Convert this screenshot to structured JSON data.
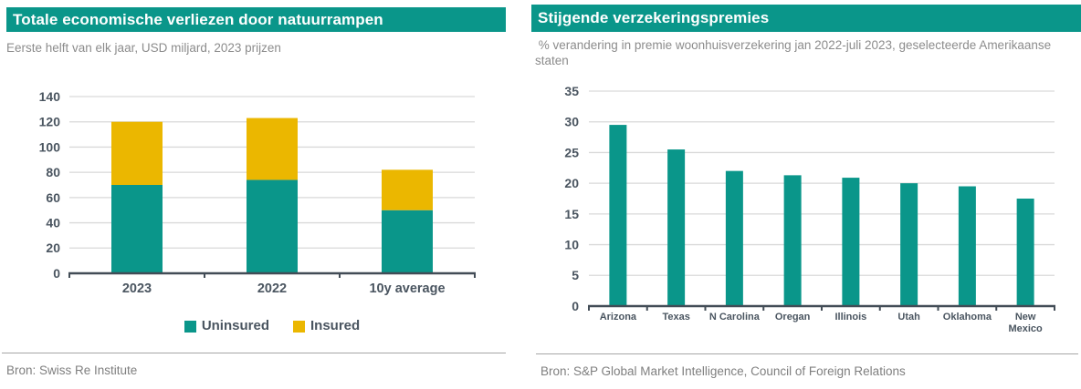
{
  "colors": {
    "teal": "#0A968A",
    "yellow": "#EBB700",
    "axis_text": "#4A5560",
    "axis_line": "#424C56",
    "gridline": "#D9D9D9",
    "subtitle_text": "#8C8C8C",
    "source_text": "#7F7F7F",
    "divider": "#A6A6A6",
    "title_text": "#FFFFFF"
  },
  "left_panel": {
    "title": "Totale economische verliezen door natuurrampen",
    "subtitle": "Eerste helft van elk jaar, USD miljard, 2023 prijzen",
    "source": "Bron: Swiss Re Institute",
    "chart_data": {
      "type": "bar",
      "stacked": true,
      "title": "Totale economische verliezen door natuurrampen",
      "subtitle": "Eerste helft van elk jaar, USD miljard, 2023 prijzen",
      "categories": [
        "2023",
        "2022",
        "10y average"
      ],
      "series": [
        {
          "name": "Uninsured",
          "color_key": "teal",
          "values": [
            70,
            74,
            50
          ]
        },
        {
          "name": "Insured",
          "color_key": "yellow",
          "values": [
            50,
            49,
            32
          ]
        }
      ],
      "ylim": [
        0,
        140
      ],
      "ytick_step": 20,
      "grid": true,
      "legend_position": "bottom"
    }
  },
  "right_panel": {
    "title": "Stijgende verzekeringspremies",
    "subtitle": " % verandering in premie woonhuisverzekering jan 2022-juli 2023, geselecteerde Amerikaanse staten",
    "source": "Bron: S&P Global Market Intelligence, Council of Foreign Relations",
    "chart_data": {
      "type": "bar",
      "stacked": false,
      "title": "Stijgende verzekeringspremies",
      "subtitle": "% verandering in premie woonhuisverzekering jan 2022-juli 2023, geselecteerde Amerikaanse staten",
      "categories": [
        "Arizona",
        "Texas",
        "N Carolina",
        "Oregan",
        "Illinois",
        "Utah",
        "Oklahoma",
        "New\nMexico"
      ],
      "series": [
        {
          "name": "Premie verandering %",
          "color_key": "teal",
          "values": [
            29.5,
            25.5,
            22,
            21.3,
            20.9,
            20,
            19.5,
            17.5
          ]
        }
      ],
      "ylim": [
        0,
        35
      ],
      "ytick_step": 5,
      "grid": true,
      "legend_position": "none"
    }
  }
}
